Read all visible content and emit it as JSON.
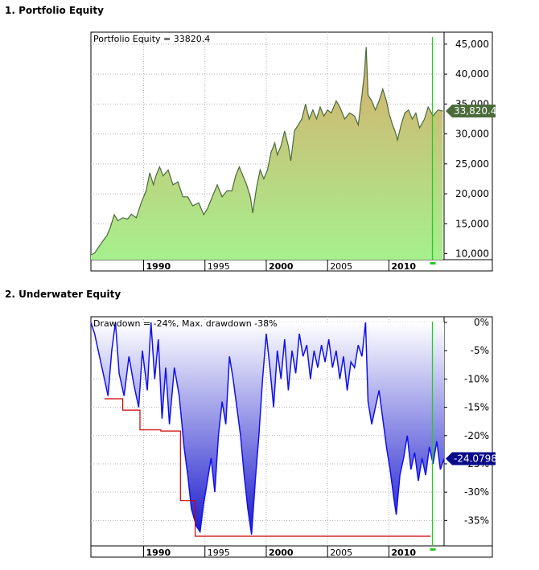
{
  "sections": [
    {
      "title": "1. Portfolio Equity"
    },
    {
      "title": "2. Underwater Equity"
    }
  ],
  "chart_data": [
    {
      "type": "area",
      "title": "Portfolio Equity = 33820.4",
      "series": [
        {
          "name": "Portfolio Equity"
        }
      ],
      "x_range": [
        1985.7,
        2014.5
      ],
      "ylim": [
        9000,
        47000
      ],
      "y_ticks": [
        10000,
        15000,
        20000,
        25000,
        30000,
        35000,
        40000,
        45000
      ],
      "y_tick_labels": [
        "10,000",
        "15,000",
        "20,000",
        "25,000",
        "30,000",
        "35,000",
        "40,000",
        "45,000"
      ],
      "x_ticks": [
        1990,
        1995,
        2000,
        2005,
        2010
      ],
      "x_tick_labels": [
        "1990",
        "1995",
        "2000",
        "2005",
        "2010"
      ],
      "x_tick_bold": [
        true,
        false,
        true,
        false,
        true
      ],
      "last_value_label": "33,820.4",
      "grid": true,
      "colors": {
        "line": "#4a6a3a",
        "fill_top": "#d8ad6c",
        "fill_bottom": "#a6f08e",
        "marker": "#22cc22",
        "label_bg": "#4a6a3a"
      },
      "points": [
        [
          1985.7,
          9800
        ],
        [
          1986.0,
          10100
        ],
        [
          1986.3,
          11000
        ],
        [
          1986.7,
          12200
        ],
        [
          1987.0,
          13000
        ],
        [
          1987.3,
          14500
        ],
        [
          1987.6,
          16500
        ],
        [
          1987.9,
          15500
        ],
        [
          1988.3,
          16000
        ],
        [
          1988.7,
          15800
        ],
        [
          1989.0,
          16600
        ],
        [
          1989.4,
          16000
        ],
        [
          1989.8,
          18500
        ],
        [
          1990.2,
          20500
        ],
        [
          1990.5,
          23500
        ],
        [
          1990.8,
          21500
        ],
        [
          1991.0,
          23000
        ],
        [
          1991.3,
          24500
        ],
        [
          1991.6,
          23000
        ],
        [
          1992.0,
          24000
        ],
        [
          1992.4,
          21500
        ],
        [
          1992.8,
          22000
        ],
        [
          1993.2,
          19500
        ],
        [
          1993.6,
          19500
        ],
        [
          1994.0,
          18000
        ],
        [
          1994.5,
          18500
        ],
        [
          1994.9,
          16500
        ],
        [
          1995.2,
          17500
        ],
        [
          1995.6,
          19500
        ],
        [
          1996.0,
          21500
        ],
        [
          1996.4,
          19500
        ],
        [
          1996.8,
          20500
        ],
        [
          1997.2,
          20500
        ],
        [
          1997.5,
          23000
        ],
        [
          1997.8,
          24500
        ],
        [
          1998.1,
          23000
        ],
        [
          1998.4,
          21500
        ],
        [
          1998.7,
          19500
        ],
        [
          1998.9,
          16800
        ],
        [
          1999.2,
          21000
        ],
        [
          1999.5,
          24000
        ],
        [
          1999.8,
          22500
        ],
        [
          2000.1,
          24000
        ],
        [
          2000.4,
          27000
        ],
        [
          2000.7,
          28500
        ],
        [
          2000.9,
          26500
        ],
        [
          2001.2,
          28000
        ],
        [
          2001.5,
          30500
        ],
        [
          2001.8,
          28000
        ],
        [
          2002.0,
          25500
        ],
        [
          2002.3,
          30500
        ],
        [
          2002.6,
          31500
        ],
        [
          2002.9,
          32500
        ],
        [
          2003.2,
          35000
        ],
        [
          2003.5,
          32500
        ],
        [
          2003.8,
          34000
        ],
        [
          2004.1,
          32500
        ],
        [
          2004.4,
          34500
        ],
        [
          2004.7,
          33000
        ],
        [
          2005.0,
          34000
        ],
        [
          2005.3,
          33500
        ],
        [
          2005.7,
          35500
        ],
        [
          2006.0,
          34500
        ],
        [
          2006.4,
          32500
        ],
        [
          2006.8,
          33500
        ],
        [
          2007.2,
          33000
        ],
        [
          2007.5,
          31500
        ],
        [
          2007.8,
          36500
        ],
        [
          2008.0,
          40000
        ],
        [
          2008.15,
          44500
        ],
        [
          2008.3,
          36500
        ],
        [
          2008.6,
          35500
        ],
        [
          2008.9,
          34000
        ],
        [
          2009.2,
          35500
        ],
        [
          2009.5,
          37500
        ],
        [
          2009.8,
          35500
        ],
        [
          2010.0,
          33500
        ],
        [
          2010.3,
          31500
        ],
        [
          2010.5,
          30500
        ],
        [
          2010.7,
          29000
        ],
        [
          2011.0,
          31500
        ],
        [
          2011.3,
          33500
        ],
        [
          2011.6,
          34000
        ],
        [
          2011.9,
          32500
        ],
        [
          2012.2,
          33500
        ],
        [
          2012.5,
          31000
        ],
        [
          2012.9,
          32500
        ],
        [
          2013.2,
          34500
        ],
        [
          2013.6,
          33000
        ],
        [
          2014.0,
          34000
        ],
        [
          2014.4,
          33820
        ]
      ]
    },
    {
      "type": "area",
      "title": "Drawdown = -24%, Max. drawdown -38%",
      "series": [
        {
          "name": "Drawdown"
        }
      ],
      "x_range": [
        1985.7,
        2014.5
      ],
      "ylim": [
        -39.5,
        1
      ],
      "y_ticks": [
        0,
        -5,
        -10,
        -15,
        -20,
        -25,
        -30,
        -35
      ],
      "y_tick_labels": [
        "0%",
        "-5%",
        "-10%",
        "-15%",
        "-20%",
        "-25%",
        "-30%",
        "-35%"
      ],
      "x_ticks": [
        1990,
        1995,
        2000,
        2005,
        2010
      ],
      "x_tick_labels": [
        "1990",
        "1995",
        "2000",
        "2005",
        "2010"
      ],
      "x_tick_bold": [
        true,
        false,
        true,
        false,
        true
      ],
      "last_value_label": "-24.0798",
      "grid": true,
      "colors": {
        "line": "#1010ee",
        "fill_top": "#ffffff",
        "fill_bottom": "#1a1acc",
        "max_dd_line": "#cc0000",
        "marker": "#22cc22",
        "label_bg": "#0b0b8a"
      },
      "points": [
        [
          1985.7,
          0
        ],
        [
          1986.0,
          -2
        ],
        [
          1986.4,
          -6
        ],
        [
          1986.8,
          -10
        ],
        [
          1987.1,
          -13
        ],
        [
          1987.4,
          -5
        ],
        [
          1987.7,
          0
        ],
        [
          1988.0,
          -9
        ],
        [
          1988.4,
          -13
        ],
        [
          1988.8,
          -6
        ],
        [
          1989.2,
          -11
        ],
        [
          1989.6,
          -15
        ],
        [
          1989.9,
          -5
        ],
        [
          1990.3,
          -12
        ],
        [
          1990.6,
          0
        ],
        [
          1990.9,
          -10
        ],
        [
          1991.2,
          -3
        ],
        [
          1991.5,
          -17
        ],
        [
          1991.8,
          -8
        ],
        [
          1992.1,
          -18
        ],
        [
          1992.5,
          -8
        ],
        [
          1992.9,
          -13
        ],
        [
          1993.3,
          -22
        ],
        [
          1993.6,
          -27
        ],
        [
          1993.9,
          -33
        ],
        [
          1994.3,
          -36
        ],
        [
          1994.6,
          -37
        ],
        [
          1994.9,
          -32
        ],
        [
          1995.2,
          -28
        ],
        [
          1995.5,
          -24
        ],
        [
          1995.8,
          -30
        ],
        [
          1996.1,
          -20
        ],
        [
          1996.4,
          -14
        ],
        [
          1996.7,
          -18
        ],
        [
          1997.0,
          -6
        ],
        [
          1997.3,
          -10
        ],
        [
          1997.6,
          -15
        ],
        [
          1997.9,
          -20
        ],
        [
          1998.2,
          -27
        ],
        [
          1998.5,
          -33
        ],
        [
          1998.8,
          -37.5
        ],
        [
          1999.1,
          -28
        ],
        [
          1999.4,
          -20
        ],
        [
          1999.7,
          -10
        ],
        [
          2000.0,
          -2
        ],
        [
          2000.3,
          -8
        ],
        [
          2000.6,
          -15
        ],
        [
          2000.9,
          -5
        ],
        [
          2001.2,
          -10
        ],
        [
          2001.5,
          -3
        ],
        [
          2001.8,
          -12
        ],
        [
          2002.1,
          -5
        ],
        [
          2002.4,
          -9
        ],
        [
          2002.7,
          -2
        ],
        [
          2003.0,
          -6
        ],
        [
          2003.3,
          -4
        ],
        [
          2003.6,
          -10
        ],
        [
          2003.9,
          -5
        ],
        [
          2004.2,
          -8
        ],
        [
          2004.5,
          -4
        ],
        [
          2004.8,
          -7
        ],
        [
          2005.1,
          -3
        ],
        [
          2005.4,
          -8
        ],
        [
          2005.7,
          -5
        ],
        [
          2006.0,
          -10
        ],
        [
          2006.3,
          -6
        ],
        [
          2006.6,
          -12
        ],
        [
          2006.9,
          -7
        ],
        [
          2007.2,
          -8
        ],
        [
          2007.5,
          -4
        ],
        [
          2007.8,
          -6
        ],
        [
          2008.1,
          0
        ],
        [
          2008.3,
          -14
        ],
        [
          2008.6,
          -18
        ],
        [
          2008.9,
          -15
        ],
        [
          2009.2,
          -12
        ],
        [
          2009.5,
          -17
        ],
        [
          2009.8,
          -22
        ],
        [
          2010.1,
          -26
        ],
        [
          2010.4,
          -31
        ],
        [
          2010.6,
          -34
        ],
        [
          2010.9,
          -27
        ],
        [
          2011.2,
          -24
        ],
        [
          2011.5,
          -20
        ],
        [
          2011.8,
          -26
        ],
        [
          2012.1,
          -23
        ],
        [
          2012.4,
          -28
        ],
        [
          2012.7,
          -24
        ],
        [
          2013.0,
          -27
        ],
        [
          2013.3,
          -22
        ],
        [
          2013.6,
          -25
        ],
        [
          2013.9,
          -21
        ],
        [
          2014.2,
          -26
        ],
        [
          2014.5,
          -24.08
        ]
      ],
      "max_dd_steps": [
        [
          1986.8,
          -13.5
        ],
        [
          1988.3,
          -13.5
        ],
        [
          1988.3,
          -15.5
        ],
        [
          1989.7,
          -15.5
        ],
        [
          1989.7,
          -19
        ],
        [
          1991.4,
          -19
        ],
        [
          1991.4,
          -19.2
        ],
        [
          1993.0,
          -19.2
        ],
        [
          1993.0,
          -31.5
        ],
        [
          1994.2,
          -31.5
        ],
        [
          1994.2,
          -37.8
        ],
        [
          2013.4,
          -37.8
        ]
      ]
    }
  ]
}
